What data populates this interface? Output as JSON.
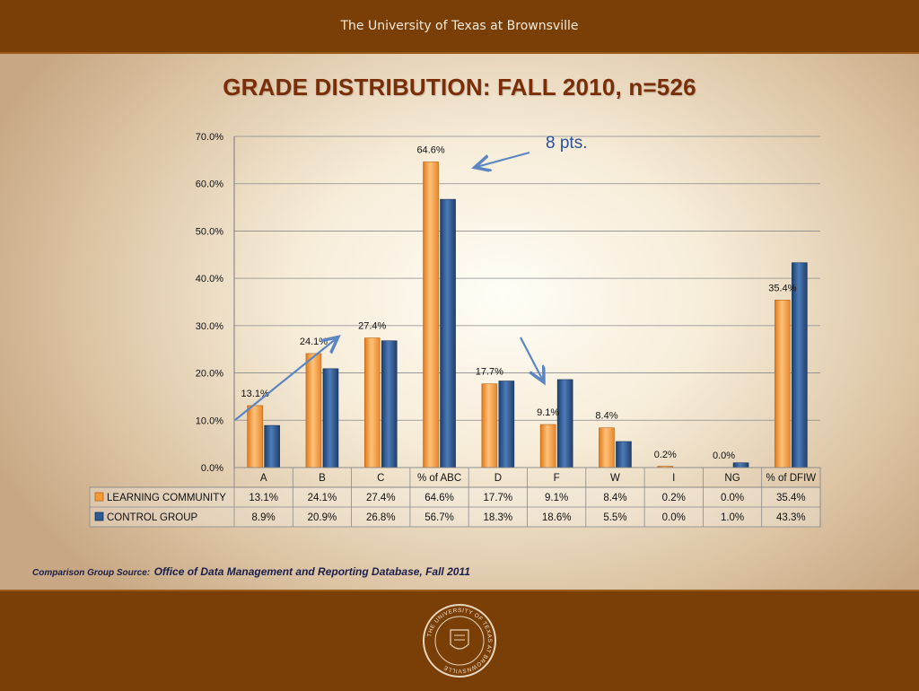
{
  "header": {
    "institution": "The University of Texas at Brownsville"
  },
  "slide": {
    "title": "GRADE DISTRIBUTION: FALL 2010, n=526"
  },
  "annotation": {
    "callout": "8 pts."
  },
  "source": {
    "label": "Comparison Group Source:",
    "text": "Office of Data Management and Reporting Database, Fall 2011"
  },
  "seal": {
    "text": "THE UNIVERSITY OF TEXAS AT BROWNSVILLE"
  },
  "colors": {
    "learning_community": "#f59a3a",
    "control_group": "#2e5a91",
    "header_band": "#7a3e07",
    "title": "#7a2e08"
  },
  "chart_data": {
    "type": "bar",
    "categories": [
      "A",
      "B",
      "C",
      "% of ABC",
      "D",
      "F",
      "W",
      "I",
      "NG",
      "% of DFIW"
    ],
    "series": [
      {
        "name": "LEARNING COMMUNITY",
        "values": [
          13.1,
          24.1,
          27.4,
          64.6,
          17.7,
          9.1,
          8.4,
          0.2,
          0.0,
          35.4
        ],
        "table_values": [
          "13.1%",
          "24.1%",
          "27.4%",
          "64.6%",
          "17.7%",
          "9.1%",
          "8.4%",
          "0.2%",
          "0.0%",
          "35.4%"
        ]
      },
      {
        "name": "CONTROL GROUP",
        "values": [
          8.9,
          20.9,
          26.8,
          56.7,
          18.3,
          18.6,
          5.5,
          0.0,
          1.0,
          43.3
        ],
        "table_values": [
          "8.9%",
          "20.9%",
          "26.8%",
          "56.7%",
          "18.3%",
          "18.6%",
          "5.5%",
          "0.0%",
          "1.0%",
          "43.3%"
        ]
      }
    ],
    "data_labels": [
      "13.1%",
      "24.1%",
      "27.4%",
      "64.6%",
      "17.7%",
      "9.1%",
      "8.4%",
      "0.2%",
      "0.0%",
      "35.4%"
    ],
    "ylim": [
      0,
      70
    ],
    "yticks": [
      "0.0%",
      "10.0%",
      "20.0%",
      "30.0%",
      "40.0%",
      "50.0%",
      "60.0%",
      "70.0%"
    ],
    "ytick_values": [
      0,
      10,
      20,
      30,
      40,
      50,
      60,
      70
    ],
    "grid": true,
    "legend": "data-table"
  }
}
